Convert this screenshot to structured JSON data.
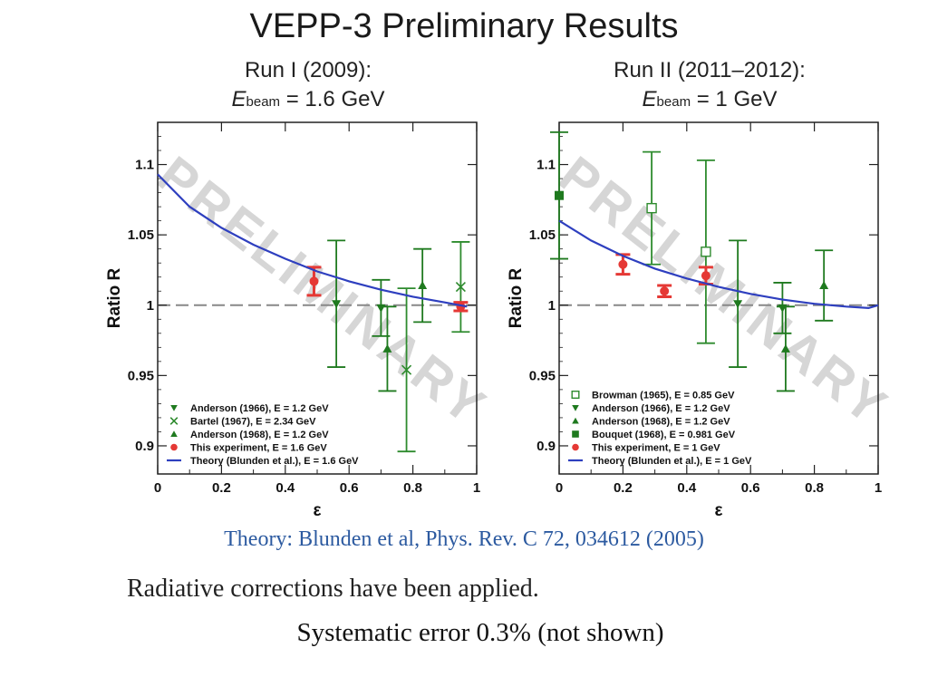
{
  "slide": {
    "title": "VEPP-3 Preliminary Results",
    "reference": "Theory: Blunden et al, Phys. Rev. C 72, 034612 (2005)",
    "note1": "Radiative corrections have been applied.",
    "note2": "Systematic error 0.3% (not shown)"
  },
  "chart_data": [
    {
      "type": "scatter",
      "title": "Run I (2009):",
      "subtitle_symbol": "E",
      "subtitle_sub": "beam",
      "subtitle_value": " = 1.6 GeV",
      "xlabel": "ε",
      "ylabel": "Ratio R",
      "xlim": [
        0,
        1
      ],
      "ylim": [
        0.88,
        1.13
      ],
      "xticks": [
        "0",
        "0.2",
        "0.4",
        "0.6",
        "0.8",
        "1"
      ],
      "yticks": [
        "0.9",
        "0.95",
        "1",
        "1.05",
        "1.1"
      ],
      "watermark": "PRELIMINARY",
      "reference_line": 1.0,
      "legend_position": "bottom-left",
      "series": [
        {
          "name": "Anderson (1966), E = 1.2 GeV",
          "marker": "triangle-down",
          "color": "#1f7a1f",
          "x": [
            0.56,
            0.7
          ],
          "y": [
            1.001,
            0.998
          ],
          "err": [
            0.045,
            0.02
          ]
        },
        {
          "name": "Bartel (1967), E = 2.34 GeV",
          "marker": "cross",
          "color": "#2e8b2e",
          "x": [
            0.78,
            0.95
          ],
          "y": [
            0.954,
            1.013
          ],
          "err": [
            0.058,
            0.032
          ]
        },
        {
          "name": "Anderson (1968), E = 1.2 GeV",
          "marker": "triangle-up",
          "color": "#1f7a1f",
          "x": [
            0.72,
            0.83
          ],
          "y": [
            0.969,
            1.014
          ],
          "err": [
            0.03,
            0.026
          ]
        },
        {
          "name": "This experiment, E = 1.6 GeV",
          "marker": "circle",
          "color": "#e53935",
          "x": [
            0.49,
            0.95
          ],
          "y": [
            1.017,
            0.999
          ],
          "err": [
            0.01,
            0.003
          ]
        },
        {
          "name": "Theory (Blunden et al.), E = 1.6 GeV",
          "marker": "line",
          "color": "#2e3fbf",
          "x": [
            0.0,
            0.1,
            0.2,
            0.3,
            0.4,
            0.5,
            0.6,
            0.7,
            0.8,
            0.9,
            0.97
          ],
          "y": [
            1.093,
            1.07,
            1.055,
            1.043,
            1.033,
            1.024,
            1.017,
            1.011,
            1.006,
            1.002,
            0.999
          ]
        }
      ]
    },
    {
      "type": "scatter",
      "title": "Run II (2011–2012):",
      "subtitle_symbol": "E",
      "subtitle_sub": "beam",
      "subtitle_value": " = 1 GeV",
      "xlabel": "ε",
      "ylabel": "Ratio R",
      "xlim": [
        0,
        1
      ],
      "ylim": [
        0.88,
        1.13
      ],
      "xticks": [
        "0",
        "0.2",
        "0.4",
        "0.6",
        "0.8",
        "1"
      ],
      "yticks": [
        "0.9",
        "0.95",
        "1",
        "1.05",
        "1.1"
      ],
      "watermark": "PRELIMINARY",
      "reference_line": 1.0,
      "legend_position": "bottom-left",
      "series": [
        {
          "name": "Browman (1965), E = 0.85 GeV",
          "marker": "square-open",
          "color": "#2e8b2e",
          "x": [
            0.29,
            0.46
          ],
          "y": [
            1.069,
            1.038
          ],
          "err": [
            0.04,
            0.065
          ]
        },
        {
          "name": "Anderson (1966), E = 1.2 GeV",
          "marker": "triangle-down",
          "color": "#1f7a1f",
          "x": [
            0.56,
            0.7
          ],
          "y": [
            1.001,
            0.998
          ],
          "err": [
            0.045,
            0.018
          ]
        },
        {
          "name": "Anderson (1968), E = 1.2 GeV",
          "marker": "triangle-up",
          "color": "#1f7a1f",
          "x": [
            0.71,
            0.83
          ],
          "y": [
            0.969,
            1.014
          ],
          "err": [
            0.03,
            0.025
          ]
        },
        {
          "name": "Bouquet (1968), E = 0.981 GeV",
          "marker": "square",
          "color": "#1f7a1f",
          "x": [
            0.0
          ],
          "y": [
            1.078
          ],
          "err": [
            0.045
          ]
        },
        {
          "name": "This experiment, E = 1 GeV",
          "marker": "circle",
          "color": "#e53935",
          "x": [
            0.2,
            0.33,
            0.46
          ],
          "y": [
            1.029,
            1.01,
            1.021
          ],
          "err": [
            0.007,
            0.004,
            0.006
          ]
        },
        {
          "name": "Theory (Blunden et al.), E = 1 GeV",
          "marker": "line",
          "color": "#2e3fbf",
          "x": [
            0.0,
            0.1,
            0.2,
            0.3,
            0.4,
            0.5,
            0.6,
            0.7,
            0.8,
            0.9,
            0.97,
            1.0
          ],
          "y": [
            1.06,
            1.046,
            1.035,
            1.026,
            1.019,
            1.013,
            1.008,
            1.004,
            1.001,
            0.999,
            0.998,
            1.0
          ]
        }
      ]
    }
  ]
}
